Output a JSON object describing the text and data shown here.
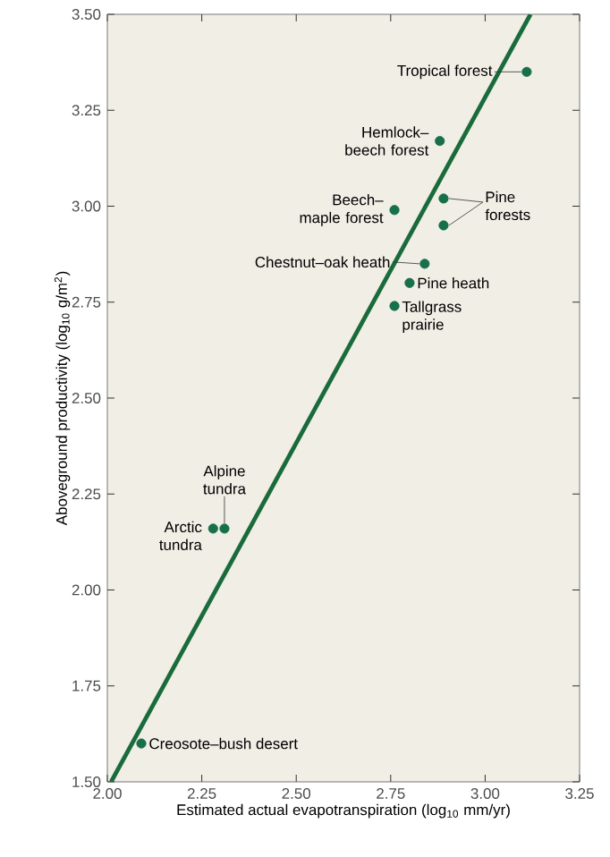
{
  "chart_data": {
    "type": "scatter",
    "xlabel": "Estimated actual evapotranspiration (log$_{10}$ mm/yr)",
    "ylabel": "Aboveground productivity (log$_{10}$ g/m$^{2}$)",
    "xlim": [
      2.0,
      3.25
    ],
    "ylim": [
      1.5,
      3.5
    ],
    "xticks": [
      {
        "value": 2.0,
        "label": "2.00"
      },
      {
        "value": 2.25,
        "label": "2.25"
      },
      {
        "value": 2.5,
        "label": "2.50"
      },
      {
        "value": 2.75,
        "label": "2.75"
      },
      {
        "value": 3.0,
        "label": "3.00"
      },
      {
        "value": 3.25,
        "label": "3.25"
      }
    ],
    "yticks": [
      {
        "value": 1.5,
        "label": "1.50"
      },
      {
        "value": 1.75,
        "label": "1.75"
      },
      {
        "value": 2.0,
        "label": "2.00"
      },
      {
        "value": 2.25,
        "label": "2.25"
      },
      {
        "value": 2.5,
        "label": "2.50"
      },
      {
        "value": 2.75,
        "label": "2.75"
      },
      {
        "value": 3.0,
        "label": "3.00"
      },
      {
        "value": 3.25,
        "label": "3.25"
      },
      {
        "value": 3.5,
        "label": "3.50"
      }
    ],
    "series": [
      {
        "marker": "circle",
        "color": "#17704a",
        "x": [
          3.11,
          2.88,
          2.76,
          2.89,
          2.89,
          2.84,
          2.8,
          2.76,
          2.28,
          2.31,
          2.09
        ],
        "values": [
          3.35,
          3.17,
          2.99,
          3.02,
          2.95,
          2.85,
          2.8,
          2.74,
          2.16,
          2.16,
          1.6
        ]
      },
      {
        "type": "line",
        "marker": "none",
        "color": "#1a6b3c",
        "x": [
          2.01,
          3.12
        ],
        "values": [
          1.5,
          3.5
        ]
      }
    ],
    "annotations": [
      {
        "text": "Tropical forest",
        "x": 3.11,
        "y": 3.35
      },
      {
        "text": "Hemlock–beech forest",
        "x": 2.88,
        "y": 3.17
      },
      {
        "text": "Beech–maple forest",
        "x": 2.76,
        "y": 2.99
      },
      {
        "text": "Pine forests",
        "x": 2.89,
        "y": 3.02
      },
      {
        "text": "Chestnut–oak heath",
        "x": 2.84,
        "y": 2.85
      },
      {
        "text": "Pine heath",
        "x": 2.8,
        "y": 2.8
      },
      {
        "text": "Tallgrass prairie",
        "x": 2.76,
        "y": 2.74
      },
      {
        "text": "Alpine tundra",
        "x": 2.31,
        "y": 2.16
      },
      {
        "text": "Arctic tundra",
        "x": 2.28,
        "y": 2.16
      },
      {
        "text": "Creosote–bush desert",
        "x": 2.09,
        "y": 1.6
      }
    ]
  }
}
